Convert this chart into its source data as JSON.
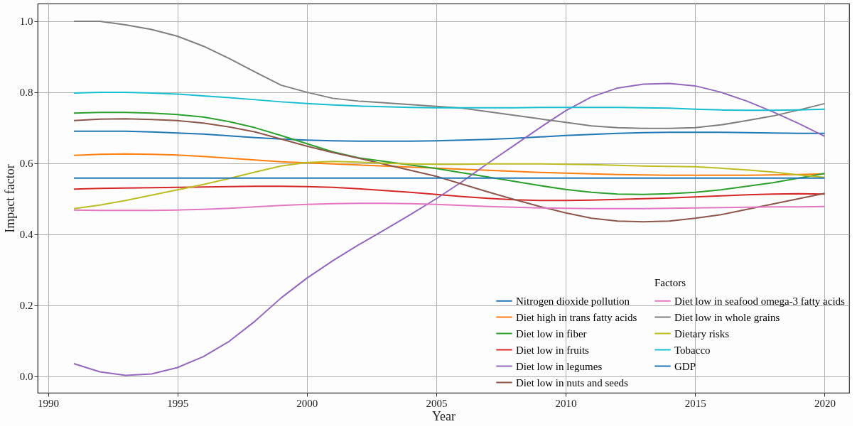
{
  "chart_data": {
    "type": "line",
    "xlabel": "Year",
    "ylabel": "Impact factor",
    "legend_title": "Factors",
    "legend": "bottom right",
    "grid": true,
    "line_style": "solid",
    "marker": "none",
    "x": [
      1991,
      1992,
      1993,
      1994,
      1995,
      1996,
      1997,
      1998,
      1999,
      2000,
      2001,
      2002,
      2003,
      2004,
      2005,
      2006,
      2007,
      2008,
      2009,
      2010,
      2011,
      2012,
      2013,
      2014,
      2015,
      2016,
      2017,
      2018,
      2019,
      2020
    ],
    "xlim": [
      1989.6,
      2020.95
    ],
    "xticks": [
      1990,
      1995,
      2000,
      2005,
      2010,
      2015,
      2020
    ],
    "ylim": [
      -0.047,
      1.05
    ],
    "yticks": [
      {
        "value": 0,
        "label": "0.0"
      },
      0.2,
      0.4,
      0.6,
      0.8,
      {
        "value": 1,
        "label": "1.0"
      }
    ],
    "series": [
      {
        "name": "Nitrogen dioxide pollution",
        "color": "#1f77b4",
        "values": [
          0.69,
          0.69,
          0.69,
          0.688,
          0.685,
          0.682,
          0.677,
          0.672,
          0.668,
          0.665,
          0.663,
          0.662,
          0.662,
          0.662,
          0.663,
          0.665,
          0.667,
          0.67,
          0.674,
          0.678,
          0.681,
          0.684,
          0.686,
          0.687,
          0.687,
          0.687,
          0.686,
          0.685,
          0.684,
          0.684
        ]
      },
      {
        "name": "Diet high in trans fatty acids",
        "color": "#ff7f0e",
        "values": [
          0.622,
          0.625,
          0.626,
          0.625,
          0.623,
          0.619,
          0.614,
          0.609,
          0.604,
          0.601,
          0.598,
          0.595,
          0.592,
          0.589,
          0.586,
          0.583,
          0.58,
          0.577,
          0.574,
          0.572,
          0.57,
          0.568,
          0.567,
          0.566,
          0.566,
          0.566,
          0.566,
          0.567,
          0.568,
          0.57
        ]
      },
      {
        "name": "Diet low in fiber",
        "color": "#2ca02c",
        "values": [
          0.741,
          0.743,
          0.743,
          0.741,
          0.737,
          0.73,
          0.717,
          0.7,
          0.678,
          0.655,
          0.632,
          0.615,
          0.605,
          0.595,
          0.585,
          0.573,
          0.561,
          0.549,
          0.537,
          0.526,
          0.518,
          0.513,
          0.512,
          0.514,
          0.518,
          0.525,
          0.535,
          0.545,
          0.558,
          0.571
        ]
      },
      {
        "name": "Diet low in fruits",
        "color": "#d62728",
        "values": [
          0.527,
          0.529,
          0.53,
          0.531,
          0.532,
          0.533,
          0.534,
          0.535,
          0.535,
          0.534,
          0.532,
          0.528,
          0.523,
          0.518,
          0.512,
          0.506,
          0.501,
          0.497,
          0.495,
          0.495,
          0.496,
          0.498,
          0.5,
          0.502,
          0.505,
          0.508,
          0.511,
          0.513,
          0.514,
          0.513
        ]
      },
      {
        "name": "Diet low in legumes",
        "color": "#9467bd",
        "values": [
          0.035,
          0.012,
          0.002,
          0.006,
          0.024,
          0.055,
          0.098,
          0.155,
          0.22,
          0.276,
          0.325,
          0.37,
          0.412,
          0.455,
          0.5,
          0.548,
          0.6,
          0.65,
          0.7,
          0.748,
          0.787,
          0.812,
          0.823,
          0.825,
          0.818,
          0.8,
          0.775,
          0.745,
          0.712,
          0.676
        ]
      },
      {
        "name": "Diet low in nuts and seeds",
        "color": "#8c564b",
        "values": [
          0.72,
          0.724,
          0.725,
          0.723,
          0.72,
          0.713,
          0.702,
          0.688,
          0.668,
          0.648,
          0.63,
          0.614,
          0.597,
          0.58,
          0.563,
          0.541,
          0.519,
          0.498,
          0.478,
          0.46,
          0.445,
          0.437,
          0.435,
          0.437,
          0.445,
          0.455,
          0.47,
          0.485,
          0.5,
          0.515
        ]
      },
      {
        "name": "Diet low in seafood omega-3 fatty acids",
        "color": "#e377c2",
        "values": [
          0.468,
          0.467,
          0.467,
          0.467,
          0.468,
          0.47,
          0.473,
          0.477,
          0.481,
          0.484,
          0.486,
          0.487,
          0.487,
          0.486,
          0.484,
          0.481,
          0.478,
          0.476,
          0.474,
          0.473,
          0.472,
          0.472,
          0.472,
          0.473,
          0.474,
          0.475,
          0.476,
          0.477,
          0.477,
          0.478
        ]
      },
      {
        "name": "Diet low in whole grains",
        "color": "#7f7f7f",
        "values": [
          1.0,
          1.0,
          0.99,
          0.977,
          0.958,
          0.93,
          0.895,
          0.857,
          0.82,
          0.8,
          0.783,
          0.775,
          0.77,
          0.765,
          0.76,
          0.755,
          0.745,
          0.735,
          0.725,
          0.715,
          0.705,
          0.7,
          0.698,
          0.698,
          0.7,
          0.708,
          0.72,
          0.733,
          0.75,
          0.768
        ]
      },
      {
        "name": "Dietary risks",
        "color": "#bcbd22",
        "values": [
          0.472,
          0.482,
          0.495,
          0.51,
          0.525,
          0.54,
          0.557,
          0.575,
          0.592,
          0.602,
          0.605,
          0.603,
          0.6,
          0.598,
          0.597,
          0.597,
          0.598,
          0.598,
          0.598,
          0.597,
          0.596,
          0.594,
          0.592,
          0.591,
          0.59,
          0.586,
          0.581,
          0.575,
          0.567,
          0.56
        ]
      },
      {
        "name": "Tobacco",
        "color": "#17becf",
        "values": [
          0.798,
          0.8,
          0.8,
          0.798,
          0.795,
          0.79,
          0.785,
          0.779,
          0.773,
          0.768,
          0.764,
          0.761,
          0.759,
          0.757,
          0.756,
          0.756,
          0.756,
          0.756,
          0.757,
          0.757,
          0.757,
          0.757,
          0.756,
          0.755,
          0.752,
          0.75,
          0.749,
          0.749,
          0.75,
          0.752
        ]
      },
      {
        "name": "GDP",
        "color": "#1f77b4",
        "values": [
          0.558,
          0.558,
          0.558,
          0.558,
          0.558,
          0.558,
          0.558,
          0.558,
          0.558,
          0.558,
          0.558,
          0.558,
          0.558,
          0.558,
          0.558,
          0.558,
          0.558,
          0.558,
          0.558,
          0.558,
          0.558,
          0.558,
          0.558,
          0.558,
          0.558,
          0.558,
          0.558,
          0.558,
          0.558,
          0.558
        ]
      }
    ]
  }
}
